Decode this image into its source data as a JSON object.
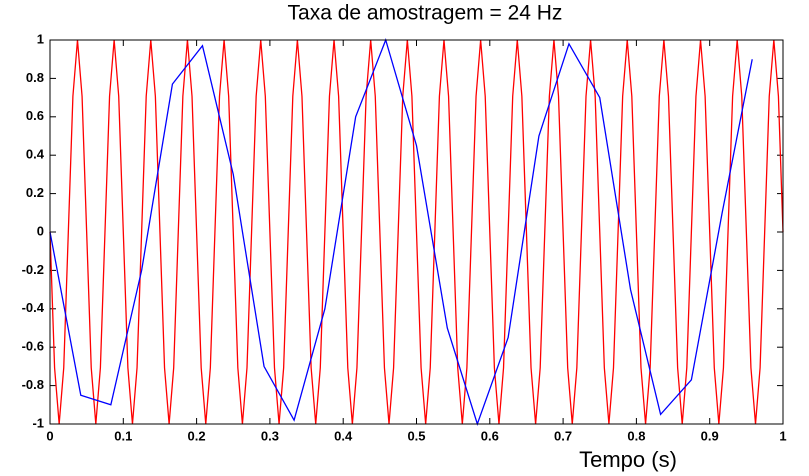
{
  "chart_data": {
    "type": "line",
    "title": "Taxa de amostragem = 24 Hz",
    "xlabel": "Tempo (s)",
    "xlim": [
      0,
      1
    ],
    "ylim": [
      -1,
      1
    ],
    "xticks": [
      0,
      0.1,
      0.2,
      0.3,
      0.4,
      0.5,
      0.6,
      0.7,
      0.8,
      0.9,
      1
    ],
    "yticks": [
      -1,
      -0.8,
      -0.6,
      -0.4,
      -0.2,
      0,
      0.2,
      0.4,
      0.6,
      0.8,
      1
    ],
    "grid": false,
    "series": [
      {
        "color": "#ff0000",
        "x": [
          0,
          0.00625,
          0.0125,
          0.01875,
          0.025,
          0.03125,
          0.0375,
          0.04375,
          0.05,
          0.05625,
          0.0625,
          0.06875,
          0.075,
          0.08125,
          0.0875,
          0.09375,
          0.1,
          0.10625,
          0.1125,
          0.11875,
          0.125,
          0.13125,
          0.1375,
          0.14375,
          0.15,
          0.15625,
          0.1625,
          0.16875,
          0.175,
          0.18125,
          0.1875,
          0.19375,
          0.2,
          0.20625,
          0.2125,
          0.21875,
          0.225,
          0.23125,
          0.2375,
          0.24375,
          0.25,
          0.25625,
          0.2625,
          0.26875,
          0.275,
          0.28125,
          0.2875,
          0.29375,
          0.3,
          0.30625,
          0.3125,
          0.31875,
          0.325,
          0.33125,
          0.3375,
          0.34375,
          0.35,
          0.35625,
          0.3625,
          0.36875,
          0.375,
          0.38125,
          0.3875,
          0.39375,
          0.4,
          0.40625,
          0.4125,
          0.41875,
          0.425,
          0.43125,
          0.4375,
          0.44375,
          0.45,
          0.45625,
          0.4625,
          0.46875,
          0.475,
          0.48125,
          0.4875,
          0.49375,
          0.5,
          0.50625,
          0.5125,
          0.51875,
          0.525,
          0.53125,
          0.5375,
          0.54375,
          0.55,
          0.55625,
          0.5625,
          0.56875,
          0.575,
          0.58125,
          0.5875,
          0.59375,
          0.6,
          0.60625,
          0.6125,
          0.61875,
          0.625,
          0.63125,
          0.6375,
          0.64375,
          0.65,
          0.65625,
          0.6625,
          0.66875,
          0.675,
          0.68125,
          0.6875,
          0.69375,
          0.7,
          0.70625,
          0.7125,
          0.71875,
          0.725,
          0.73125,
          0.7375,
          0.74375,
          0.75,
          0.75625,
          0.7625,
          0.76875,
          0.775,
          0.78125,
          0.7875,
          0.79375,
          0.8,
          0.80625,
          0.8125,
          0.81875,
          0.825,
          0.83125,
          0.8375,
          0.84375,
          0.85,
          0.85625,
          0.8625,
          0.86875,
          0.875,
          0.88125,
          0.8875,
          0.89375,
          0.9,
          0.90625,
          0.9125,
          0.91875,
          0.925,
          0.93125,
          0.9375,
          0.94375,
          0.95,
          0.95625,
          0.9625,
          0.96875,
          0.975,
          0.98125,
          0.9875,
          0.99375,
          1
        ],
        "values": [
          0,
          -0.7071,
          -1,
          -0.7071,
          0,
          0.7071,
          1,
          0.7071,
          0,
          -0.7071,
          -1,
          -0.7071,
          0,
          0.7071,
          1,
          0.7071,
          0,
          -0.7071,
          -1,
          -0.7071,
          0,
          0.7071,
          1,
          0.7071,
          0,
          -0.7071,
          -1,
          -0.7071,
          0,
          0.7071,
          1,
          0.7071,
          0,
          -0.7071,
          -1,
          -0.7071,
          0,
          0.7071,
          1,
          0.7071,
          0,
          -0.7071,
          -1,
          -0.7071,
          0,
          0.7071,
          1,
          0.7071,
          0,
          -0.7071,
          -1,
          -0.7071,
          0,
          0.7071,
          1,
          0.7071,
          0,
          -0.7071,
          -1,
          -0.7071,
          0,
          0.7071,
          1,
          0.7071,
          0,
          -0.7071,
          -1,
          -0.7071,
          0,
          0.7071,
          1,
          0.7071,
          0,
          -0.7071,
          -1,
          -0.7071,
          0,
          0.7071,
          1,
          0.7071,
          0,
          -0.7071,
          -1,
          -0.7071,
          0,
          0.7071,
          1,
          0.7071,
          0,
          -0.7071,
          -1,
          -0.7071,
          0,
          0.7071,
          1,
          0.7071,
          0,
          -0.7071,
          -1,
          -0.7071,
          0,
          0.7071,
          1,
          0.7071,
          0,
          -0.7071,
          -1,
          -0.7071,
          0,
          0.7071,
          1,
          0.7071,
          0,
          -0.7071,
          -1,
          -0.7071,
          0,
          0.7071,
          1,
          0.7071,
          0,
          -0.7071,
          -1,
          -0.7071,
          0,
          0.7071,
          1,
          0.7071,
          0,
          -0.7071,
          -1,
          -0.7071,
          0,
          0.7071,
          1,
          0.7071,
          0,
          -0.7071,
          -1,
          -0.7071,
          0,
          0.7071,
          1,
          0.7071,
          0,
          -0.7071,
          -1,
          -0.7071,
          0,
          0.7071,
          1,
          0.7071,
          0,
          -0.7071,
          -1,
          -0.7071,
          0,
          0.7071,
          1,
          0.7071,
          0
        ]
      },
      {
        "color": "#0000ff",
        "x": [
          0,
          0.042,
          0.083,
          0.125,
          0.167,
          0.208,
          0.25,
          0.292,
          0.333,
          0.375,
          0.417,
          0.458,
          0.5,
          0.542,
          0.583,
          0.625,
          0.667,
          0.708,
          0.75,
          0.792,
          0.833,
          0.875,
          0.917,
          0.958
        ],
        "values": [
          0,
          -0.85,
          -0.9,
          -0.2,
          0.77,
          0.97,
          0.3,
          -0.7,
          -0.98,
          -0.4,
          0.6,
          1,
          0.45,
          -0.5,
          -1,
          -0.55,
          0.5,
          0.98,
          0.7,
          -0.3,
          -0.95,
          -0.77,
          0.1,
          0.9
        ]
      }
    ]
  }
}
